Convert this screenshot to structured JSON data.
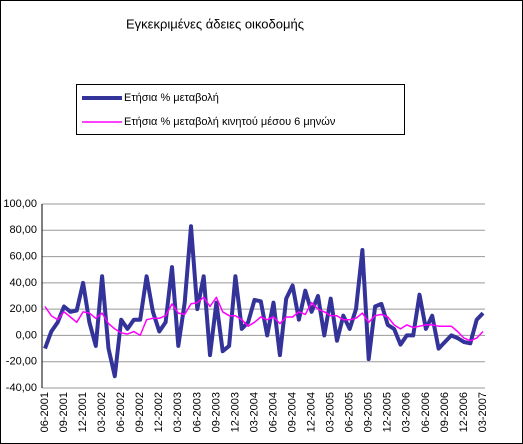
{
  "chart_data": {
    "type": "line",
    "title": "Εγκεκριμένες άδειες οικοδομής",
    "categories": [
      "06-2001",
      null,
      null,
      "09-2001",
      null,
      null,
      "12-2001",
      null,
      null,
      "03-2002",
      null,
      null,
      "06-2002",
      null,
      null,
      "09-2002",
      null,
      null,
      "12-2002",
      null,
      null,
      "03-2003",
      null,
      null,
      "06-2003",
      null,
      null,
      "09-2003",
      null,
      null,
      "12-2003",
      null,
      null,
      "03-2004",
      null,
      null,
      "06-2004",
      null,
      null,
      "09-2004",
      null,
      null,
      "12-2004",
      null,
      null,
      "03-2005",
      null,
      null,
      "06-2005",
      null,
      null,
      "09-2005",
      null,
      null,
      "12-2005",
      null,
      null,
      "03-2006",
      null,
      null,
      "06-2006",
      null,
      null,
      "09-2006",
      null,
      null,
      "12-2006",
      null,
      null,
      "03-2007"
    ],
    "series": [
      {
        "name": "Ετήσια % μεταβολή",
        "color": "#333399",
        "width": 4,
        "values": [
          -10,
          3,
          10,
          22,
          18,
          19,
          40,
          10,
          -8,
          45,
          -10,
          -31,
          12,
          5,
          12,
          12,
          45,
          18,
          3,
          10,
          52,
          -8,
          25,
          83,
          20,
          45,
          -15,
          25,
          -12,
          -8,
          45,
          5,
          10,
          27,
          26,
          0,
          25,
          -15,
          28,
          38,
          12,
          34,
          18,
          30,
          0,
          28,
          -4,
          15,
          5,
          20,
          65,
          -18,
          22,
          24,
          8,
          5,
          -7,
          0,
          0,
          31,
          5,
          15,
          -10,
          -5,
          0,
          -2,
          -5,
          -6,
          12,
          17
        ]
      },
      {
        "name": "Ετήσια % μεταβολή κινητού μέσου 6 μηνών",
        "color": "#ff00ff",
        "width": 1.5,
        "values": [
          22,
          15,
          12,
          18,
          14,
          10,
          18,
          17,
          13,
          17,
          9,
          5,
          2,
          1,
          3,
          0,
          12,
          13,
          13,
          15,
          24,
          17,
          16,
          24,
          25,
          29,
          22,
          29,
          18,
          15,
          15,
          12,
          7,
          10,
          14,
          12,
          14,
          9,
          14,
          14,
          18,
          16,
          25,
          20,
          18,
          15,
          15,
          12,
          12,
          13,
          17,
          10,
          15,
          16,
          14,
          8,
          5,
          8,
          6,
          7,
          8,
          8,
          7,
          7,
          7,
          3,
          -2,
          -4,
          -2,
          3
        ]
      }
    ],
    "ylim": [
      -40,
      100
    ],
    "yticks": [
      {
        "value": -40,
        "label": "-40,00"
      },
      {
        "value": -20,
        "label": "-20,00"
      },
      {
        "value": 0,
        "label": "0,00"
      },
      {
        "value": 20,
        "label": "20,00"
      },
      {
        "value": 40,
        "label": "40,00"
      },
      {
        "value": 60,
        "label": "60,00"
      },
      {
        "value": 80,
        "label": "80,00"
      },
      {
        "value": 100,
        "label": "100,00"
      }
    ],
    "grid": true
  }
}
